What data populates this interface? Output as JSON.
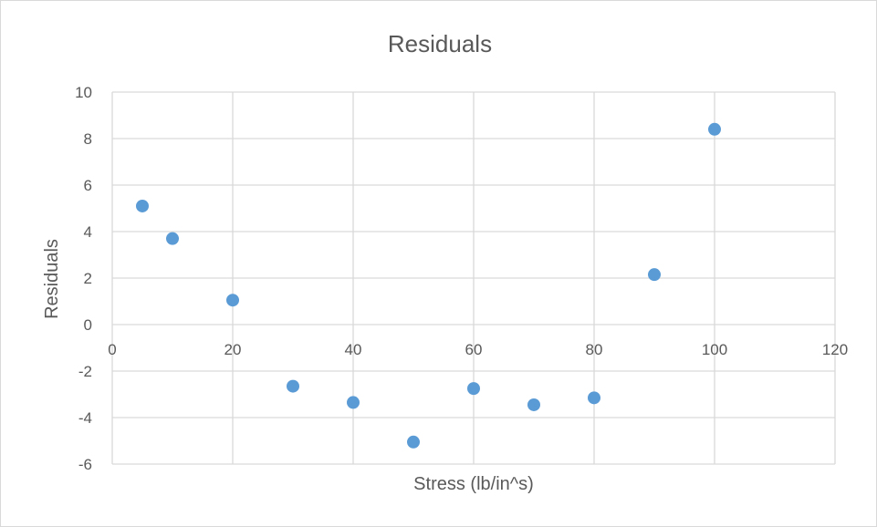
{
  "chart_data": {
    "type": "scatter",
    "title": "Residuals",
    "xlabel": "Stress (lb/in^s)",
    "ylabel": "Residuals",
    "xlim": [
      0,
      120
    ],
    "ylim": [
      -6,
      10
    ],
    "x_ticks": [
      0,
      20,
      40,
      60,
      80,
      100,
      120
    ],
    "y_ticks": [
      -6,
      -4,
      -2,
      0,
      2,
      4,
      6,
      8,
      10
    ],
    "grid": true,
    "legend": "none",
    "series": [
      {
        "color": "#5b9bd5",
        "x": [
          5,
          10,
          20,
          30,
          40,
          50,
          60,
          70,
          80,
          90,
          100
        ],
        "y": [
          5.1,
          3.7,
          1.05,
          -2.65,
          -3.35,
          -5.05,
          -2.75,
          -3.45,
          -3.15,
          2.15,
          8.4
        ]
      }
    ]
  }
}
